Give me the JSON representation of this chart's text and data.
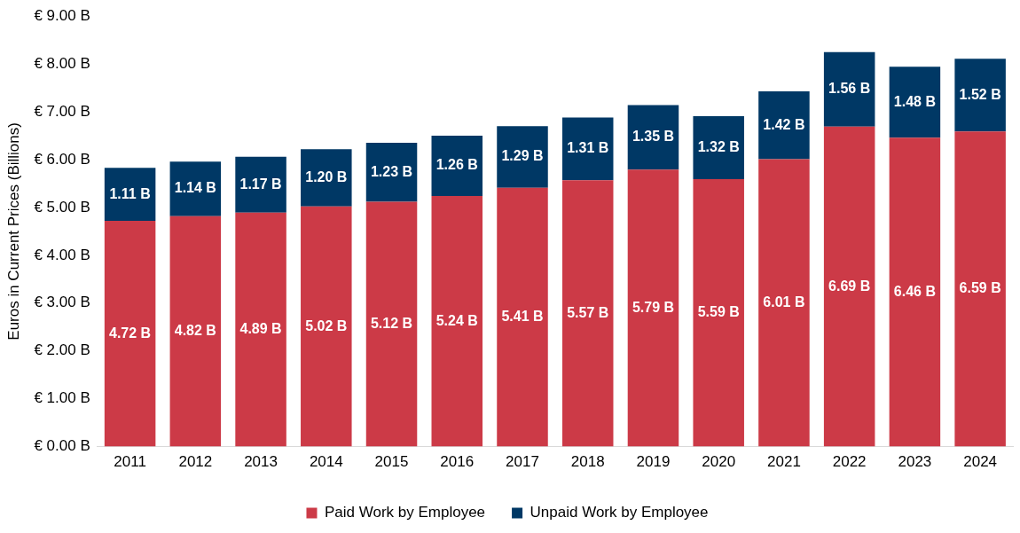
{
  "chart_data": {
    "type": "bar",
    "stacked": true,
    "ylabel": "Euros in Current Prices (Billions)",
    "categories": [
      "2011",
      "2012",
      "2013",
      "2014",
      "2015",
      "2016",
      "2017",
      "2018",
      "2019",
      "2020",
      "2021",
      "2022",
      "2023",
      "2024"
    ],
    "series": [
      {
        "name": "Paid Work by Employee",
        "color": "#cc3a47",
        "values": [
          4.72,
          4.82,
          4.89,
          5.02,
          5.12,
          5.24,
          5.41,
          5.57,
          5.79,
          5.59,
          6.01,
          6.69,
          6.46,
          6.59
        ],
        "value_labels": [
          "4.72 B",
          "4.82 B",
          "4.89 B",
          "5.02 B",
          "5.12 B",
          "5.24 B",
          "5.41 B",
          "5.57 B",
          "5.79 B",
          "5.59 B",
          "6.01 B",
          "6.69 B",
          "6.46 B",
          "6.59 B"
        ]
      },
      {
        "name": "Unpaid Work by Employee",
        "color": "#003865",
        "values": [
          1.11,
          1.14,
          1.17,
          1.2,
          1.23,
          1.26,
          1.29,
          1.31,
          1.35,
          1.32,
          1.42,
          1.56,
          1.48,
          1.52
        ],
        "value_labels": [
          "1.11 B",
          "1.14 B",
          "1.17 B",
          "1.20 B",
          "1.23 B",
          "1.26 B",
          "1.29 B",
          "1.31 B",
          "1.35 B",
          "1.32 B",
          "1.42 B",
          "1.56 B",
          "1.48 B",
          "1.52 B"
        ]
      }
    ],
    "ylim": [
      0,
      9
    ],
    "yticks": [
      {
        "value": 0,
        "label": "€ 0.00 B"
      },
      {
        "value": 1,
        "label": "€ 1.00 B"
      },
      {
        "value": 2,
        "label": "€ 2.00 B"
      },
      {
        "value": 3,
        "label": "€ 3.00 B"
      },
      {
        "value": 4,
        "label": "€ 4.00 B"
      },
      {
        "value": 5,
        "label": "€ 5.00 B"
      },
      {
        "value": 6,
        "label": "€ 6.00 B"
      },
      {
        "value": 7,
        "label": "€ 7.00 B"
      },
      {
        "value": 8,
        "label": "€ 8.00 B"
      },
      {
        "value": 9,
        "label": "€ 9.00 B"
      }
    ],
    "grid": false,
    "legend": "bottom"
  }
}
